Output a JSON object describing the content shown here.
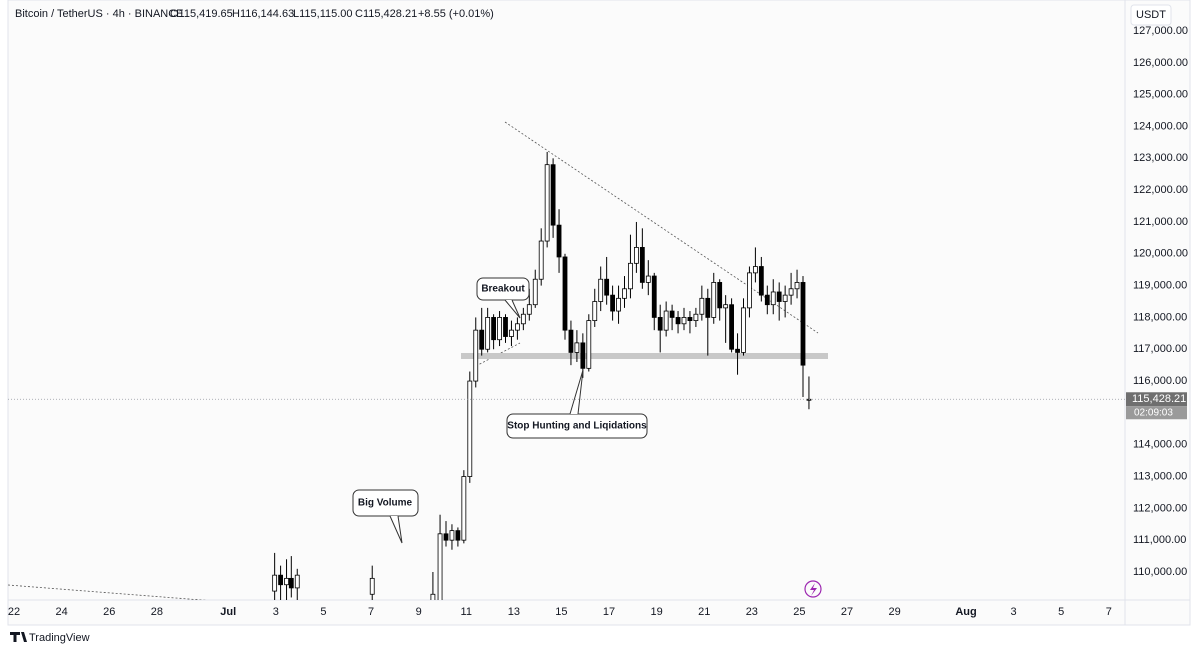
{
  "chart_data": {
    "type": "candlestick",
    "symbol": "Bitcoin / TetherUS · 4h · BINANCE",
    "ohlc_header": [
      "O115,419.65",
      "H116,144.63",
      "L115,115.00",
      "C115,428.21"
    ],
    "change": "+8.55 (+0.01%)",
    "currency": "USDT",
    "up_color": "#ffffff",
    "down_color": "#000000",
    "x": [
      10.95,
      11.2,
      11.45,
      11.65,
      11.9,
      15.05,
      17.6,
      17.9,
      18.15,
      18.4,
      18.65,
      18.9,
      19.15,
      19.4,
      19.65,
      19.9,
      20.15,
      20.4,
      20.65,
      20.9,
      21.15,
      21.4,
      21.65,
      21.9,
      22.15,
      22.4,
      22.65,
      22.9,
      23.15,
      23.4,
      23.65,
      23.9,
      24.15,
      24.4,
      24.65,
      24.9,
      25.15,
      25.4,
      25.65,
      25.9,
      26.15,
      26.4,
      26.65,
      26.9,
      27.15,
      27.4,
      27.65,
      27.9,
      28.15,
      28.4,
      28.65,
      28.9,
      29.15,
      29.4,
      29.65,
      29.9,
      30.15,
      30.4,
      30.65,
      30.9,
      31.15,
      31.4,
      31.65,
      31.9,
      32.15,
      32.4,
      32.65,
      32.9,
      33.15,
      33.4
    ],
    "ohlc": [
      [
        109400,
        110600,
        109000,
        109900
      ],
      [
        109900,
        110200,
        109000,
        109600
      ],
      [
        109600,
        110400,
        109100,
        109800
      ],
      [
        109800,
        110500,
        109200,
        109500
      ],
      [
        109500,
        110100,
        109000,
        109900
      ],
      [
        109300,
        110200,
        108900,
        109800
      ],
      [
        108900,
        110000,
        108700,
        109300
      ],
      [
        109000,
        111800,
        108900,
        111200
      ],
      [
        111200,
        111600,
        110800,
        111000
      ],
      [
        111000,
        111500,
        110700,
        111300
      ],
      [
        111300,
        111400,
        110800,
        111000
      ],
      [
        111000,
        113200,
        110900,
        113000
      ],
      [
        113000,
        116300,
        112800,
        116000
      ],
      [
        116000,
        118000,
        115800,
        117600
      ],
      [
        117600,
        118300,
        116800,
        117000
      ],
      [
        117000,
        118300,
        116900,
        118000
      ],
      [
        118000,
        118100,
        117000,
        117300
      ],
      [
        117300,
        118200,
        117100,
        118000
      ],
      [
        118000,
        118100,
        117200,
        117400
      ],
      [
        117400,
        117900,
        117100,
        117600
      ],
      [
        117600,
        118000,
        117300,
        117800
      ],
      [
        117800,
        118300,
        117600,
        118100
      ],
      [
        118100,
        118900,
        117900,
        118400
      ],
      [
        118400,
        119500,
        118300,
        119200
      ],
      [
        119200,
        120800,
        119000,
        120400
      ],
      [
        120400,
        123200,
        120200,
        122800
      ],
      [
        122800,
        123000,
        120500,
        120900
      ],
      [
        120900,
        121400,
        119400,
        119900
      ],
      [
        119900,
        120000,
        117300,
        117600
      ],
      [
        117600,
        117900,
        116500,
        116900
      ],
      [
        116900,
        117600,
        116600,
        117200
      ],
      [
        117200,
        117500,
        116100,
        116400
      ],
      [
        116400,
        118100,
        116300,
        117900
      ],
      [
        117900,
        118900,
        117700,
        118500
      ],
      [
        118500,
        119600,
        118200,
        119200
      ],
      [
        119200,
        119900,
        118400,
        118700
      ],
      [
        118700,
        119000,
        117900,
        118200
      ],
      [
        118200,
        119000,
        117800,
        118600
      ],
      [
        118600,
        119300,
        118300,
        118900
      ],
      [
        118900,
        120600,
        118600,
        119700
      ],
      [
        119700,
        121000,
        119400,
        120200
      ],
      [
        120200,
        120800,
        118900,
        119100
      ],
      [
        119100,
        119800,
        118700,
        119300
      ],
      [
        119300,
        119400,
        117600,
        118000
      ],
      [
        118000,
        118400,
        116900,
        117600
      ],
      [
        117600,
        118500,
        117400,
        118200
      ],
      [
        118200,
        118400,
        117600,
        118000
      ],
      [
        118000,
        118200,
        117500,
        117800
      ],
      [
        117800,
        118300,
        117600,
        118000
      ],
      [
        118000,
        118200,
        117500,
        117900
      ],
      [
        117900,
        118300,
        117700,
        118100
      ],
      [
        118100,
        119000,
        117900,
        118600
      ],
      [
        118600,
        118900,
        116800,
        118000
      ],
      [
        118000,
        119400,
        117800,
        119100
      ],
      [
        119100,
        119200,
        117900,
        118300
      ],
      [
        118300,
        118700,
        117200,
        118400
      ],
      [
        118400,
        118600,
        116900,
        117000
      ],
      [
        117000,
        117500,
        116200,
        116900
      ],
      [
        116900,
        118600,
        116800,
        118300
      ],
      [
        118300,
        119600,
        118000,
        119400
      ],
      [
        119400,
        120200,
        119100,
        119600
      ],
      [
        119600,
        119900,
        118500,
        118700
      ],
      [
        118700,
        119000,
        118100,
        118400
      ],
      [
        118400,
        119200,
        118100,
        118800
      ],
      [
        118800,
        119100,
        117900,
        118500
      ],
      [
        118500,
        119000,
        118000,
        118700
      ],
      [
        118700,
        119400,
        118400,
        118900
      ],
      [
        118900,
        119500,
        118600,
        119100
      ],
      [
        119100,
        119300,
        115500,
        116500
      ],
      [
        115419.65,
        116144.63,
        115115.0,
        115428.21
      ]
    ],
    "xlim": [
      -0.59,
      46.68
    ],
    "xticks": [
      {
        "value": 0,
        "label": "22"
      },
      {
        "value": 2,
        "label": "24"
      },
      {
        "value": 4,
        "label": "26"
      },
      {
        "value": 6,
        "label": "28"
      },
      {
        "value": 9,
        "label": "Jul"
      },
      {
        "value": 11,
        "label": "3"
      },
      {
        "value": 13,
        "label": "5"
      },
      {
        "value": 15,
        "label": "7"
      },
      {
        "value": 17,
        "label": "9"
      },
      {
        "value": 19,
        "label": "11"
      },
      {
        "value": 21,
        "label": "13"
      },
      {
        "value": 23,
        "label": "15"
      },
      {
        "value": 25,
        "label": "17"
      },
      {
        "value": 27,
        "label": "19"
      },
      {
        "value": 29,
        "label": "21"
      },
      {
        "value": 31,
        "label": "23"
      },
      {
        "value": 33,
        "label": "25"
      },
      {
        "value": 35,
        "label": "27"
      },
      {
        "value": 37,
        "label": "29"
      },
      {
        "value": 40,
        "label": "Aug"
      },
      {
        "value": 42,
        "label": "3"
      },
      {
        "value": 44,
        "label": "5"
      },
      {
        "value": 46,
        "label": "7"
      }
    ],
    "ylim": [
      109120,
      127975
    ],
    "yticks": [
      {
        "value": 110000,
        "label": "110,000.00"
      },
      {
        "value": 111000,
        "label": "111,000.00"
      },
      {
        "value": 112000,
        "label": "112,000.00"
      },
      {
        "value": 113000,
        "label": "113,000.00"
      },
      {
        "value": 114000,
        "label": "114,000.00"
      },
      {
        "value": 115000,
        "label": "115,000.00"
      },
      {
        "value": 116000,
        "label": "116,000.00"
      },
      {
        "value": 117000,
        "label": "117,000.00"
      },
      {
        "value": 118000,
        "label": "118,000.00"
      },
      {
        "value": 119000,
        "label": "119,000.00"
      },
      {
        "value": 120000,
        "label": "120,000.00"
      },
      {
        "value": 121000,
        "label": "121,000.00"
      },
      {
        "value": 122000,
        "label": "122,000.00"
      },
      {
        "value": 123000,
        "label": "123,000.00"
      },
      {
        "value": 124000,
        "label": "124,000.00"
      },
      {
        "value": 125000,
        "label": "125,000.00"
      },
      {
        "value": 126000,
        "label": "126,000.00"
      },
      {
        "value": 127000,
        "label": "127,000.00"
      }
    ],
    "last_price": {
      "value": 115428.21,
      "label": "115,428.21"
    },
    "countdown": "02:09:03",
    "annotations": [
      "Breakout",
      "Big Volume",
      "Stop Hunting and Liqidations"
    ],
    "brand": "TradingView"
  }
}
